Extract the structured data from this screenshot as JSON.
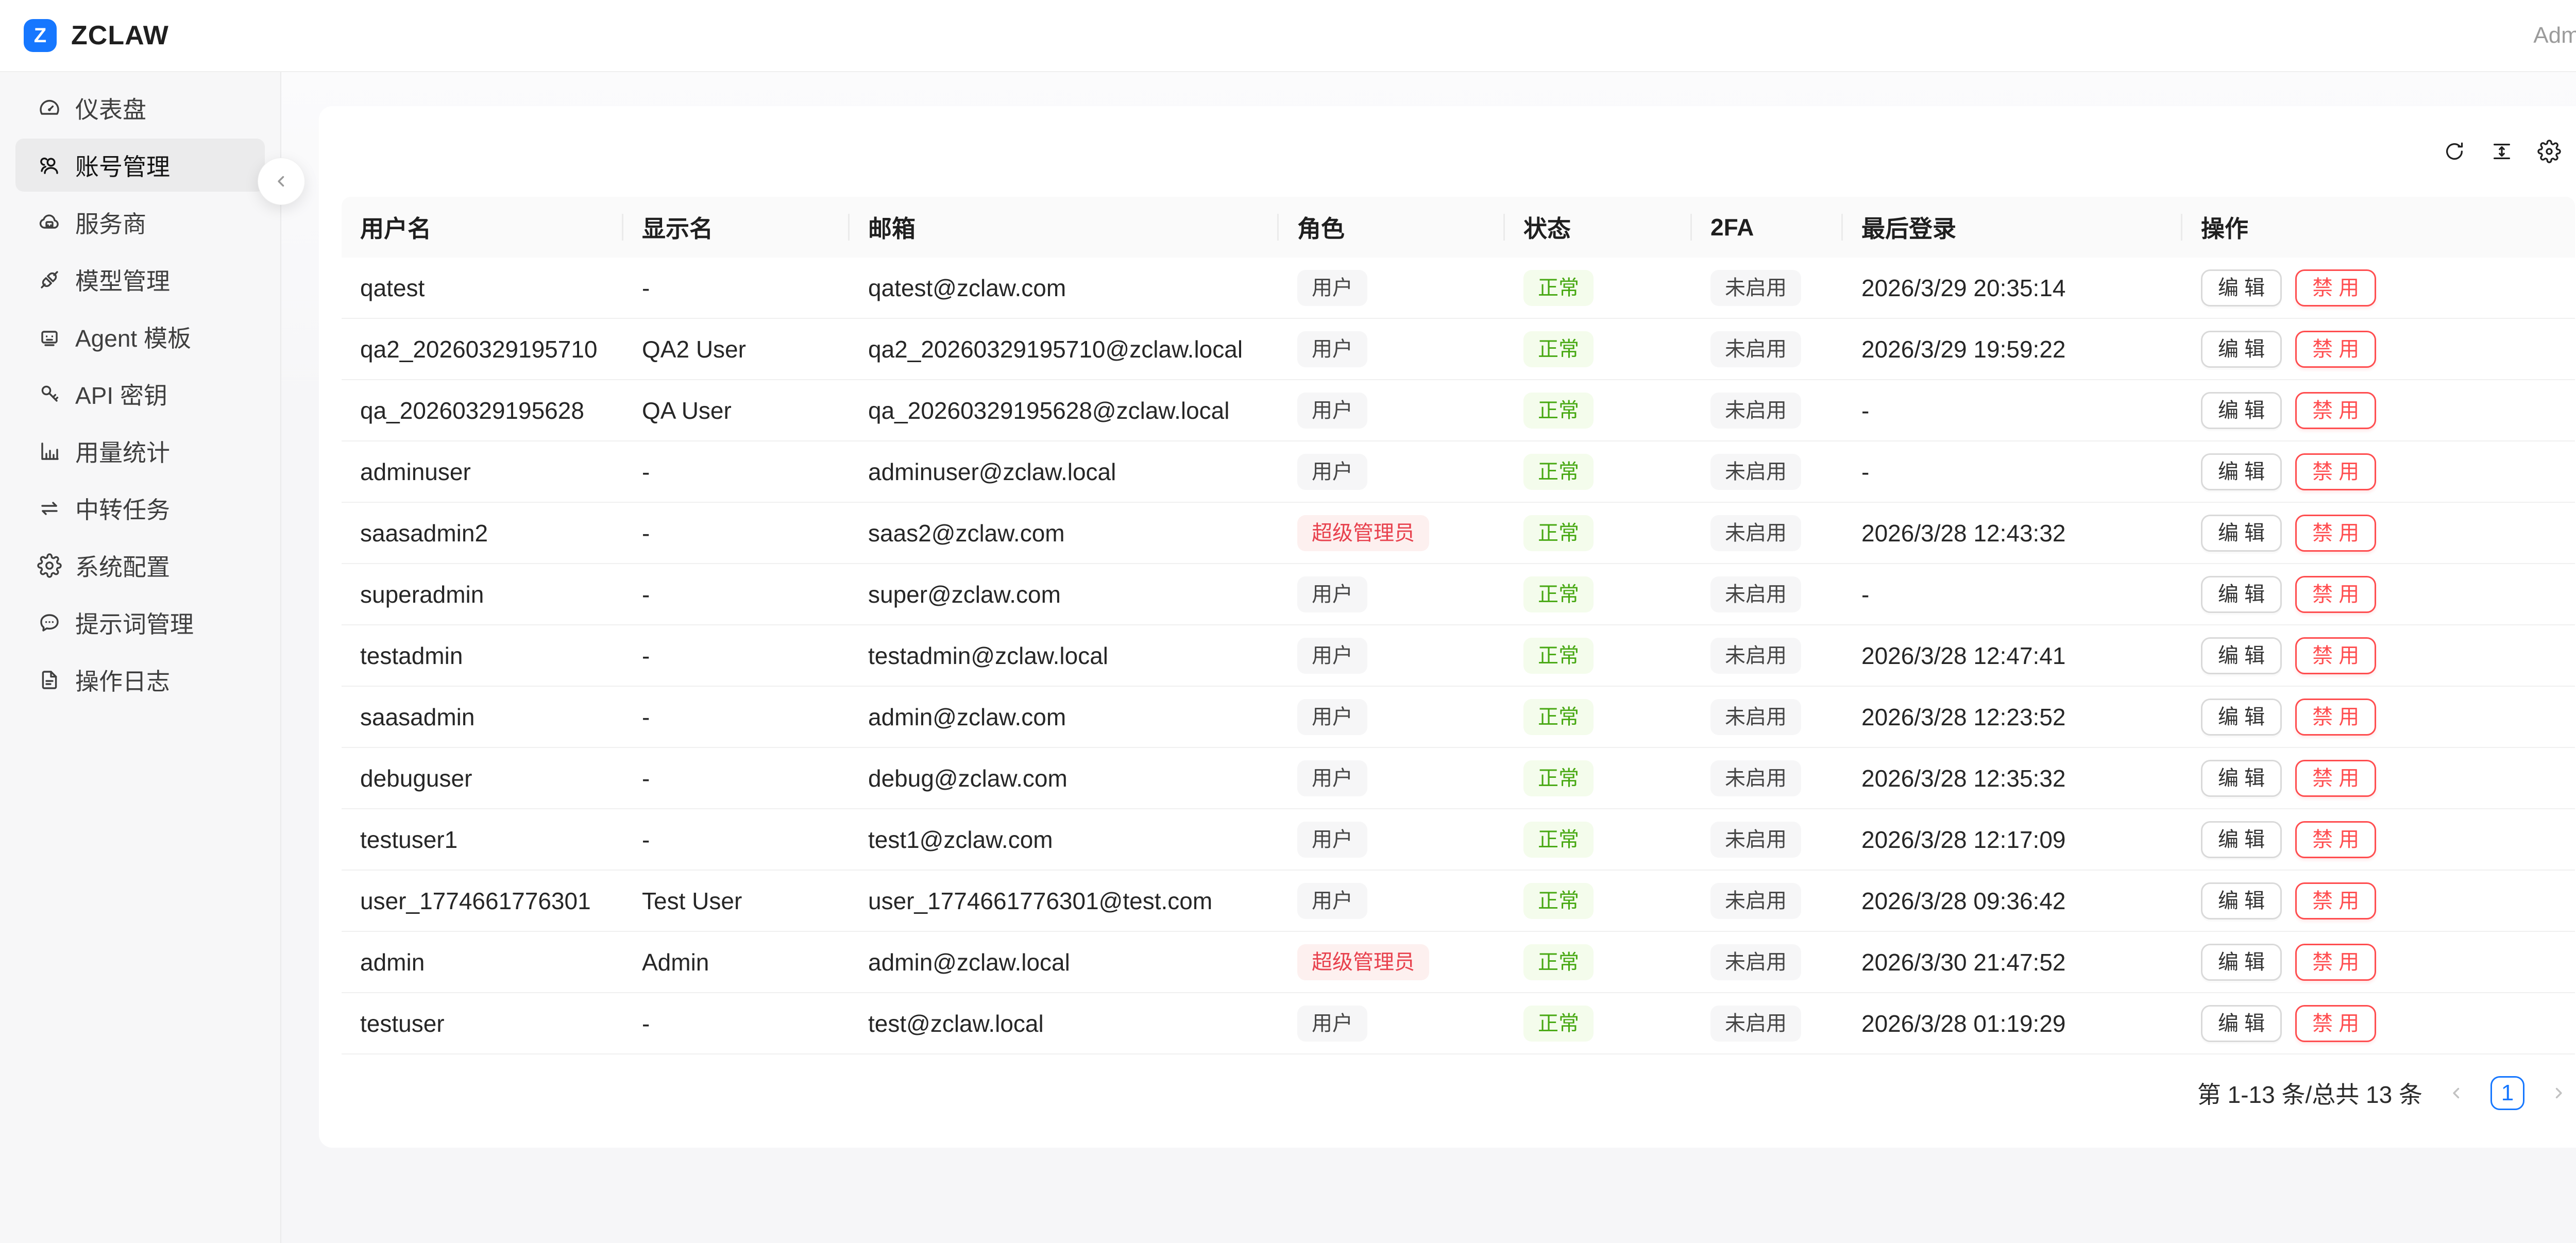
{
  "topbar": {
    "logo_letter": "Z",
    "title": "ZCLAW",
    "user": "Admin"
  },
  "colors": {
    "brand": "#1677ff",
    "tag_success_text": "#47a812",
    "tag_danger_text": "#e8414d",
    "button_danger": "#ff4d4f"
  },
  "sidebar": {
    "items": [
      {
        "label": "仪表盘",
        "icon": "dashboard-icon",
        "active": false
      },
      {
        "label": "账号管理",
        "icon": "users-icon",
        "active": true
      },
      {
        "label": "服务商",
        "icon": "cloud-server-icon",
        "active": false
      },
      {
        "label": "模型管理",
        "icon": "plug-icon",
        "active": false
      },
      {
        "label": "Agent 模板",
        "icon": "robot-icon",
        "active": false
      },
      {
        "label": "API 密钥",
        "icon": "key-icon",
        "active": false
      },
      {
        "label": "用量统计",
        "icon": "bar-chart-icon",
        "active": false
      },
      {
        "label": "中转任务",
        "icon": "swap-icon",
        "active": false
      },
      {
        "label": "系统配置",
        "icon": "gear-icon",
        "active": false
      },
      {
        "label": "提示词管理",
        "icon": "message-icon",
        "active": false
      },
      {
        "label": "操作日志",
        "icon": "file-icon",
        "active": false
      }
    ]
  },
  "toolbar": {
    "icons": [
      {
        "name": "reload-icon"
      },
      {
        "name": "density-icon"
      },
      {
        "name": "column-setting-icon"
      }
    ]
  },
  "table": {
    "columns": [
      "用户名",
      "显示名",
      "邮箱",
      "角色",
      "状态",
      "2FA",
      "最后登录",
      "操作"
    ],
    "actions": {
      "edit": "编 辑",
      "disable": "禁 用"
    },
    "rows": [
      {
        "username": "qatest",
        "display_name": "-",
        "email": "qatest@zclaw.com",
        "role": "用户",
        "role_type": "default",
        "status": "正常",
        "twofa": "未启用",
        "last_login": "2026/3/29 20:35:14"
      },
      {
        "username": "qa2_20260329195710",
        "display_name": "QA2 User",
        "email": "qa2_20260329195710@zclaw.local",
        "role": "用户",
        "role_type": "default",
        "status": "正常",
        "twofa": "未启用",
        "last_login": "2026/3/29 19:59:22"
      },
      {
        "username": "qa_20260329195628",
        "display_name": "QA User",
        "email": "qa_20260329195628@zclaw.local",
        "role": "用户",
        "role_type": "default",
        "status": "正常",
        "twofa": "未启用",
        "last_login": "-"
      },
      {
        "username": "adminuser",
        "display_name": "-",
        "email": "adminuser@zclaw.local",
        "role": "用户",
        "role_type": "default",
        "status": "正常",
        "twofa": "未启用",
        "last_login": "-"
      },
      {
        "username": "saasadmin2",
        "display_name": "-",
        "email": "saas2@zclaw.com",
        "role": "超级管理员",
        "role_type": "danger",
        "status": "正常",
        "twofa": "未启用",
        "last_login": "2026/3/28 12:43:32"
      },
      {
        "username": "superadmin",
        "display_name": "-",
        "email": "super@zclaw.com",
        "role": "用户",
        "role_type": "default",
        "status": "正常",
        "twofa": "未启用",
        "last_login": "-"
      },
      {
        "username": "testadmin",
        "display_name": "-",
        "email": "testadmin@zclaw.local",
        "role": "用户",
        "role_type": "default",
        "status": "正常",
        "twofa": "未启用",
        "last_login": "2026/3/28 12:47:41"
      },
      {
        "username": "saasadmin",
        "display_name": "-",
        "email": "admin@zclaw.com",
        "role": "用户",
        "role_type": "default",
        "status": "正常",
        "twofa": "未启用",
        "last_login": "2026/3/28 12:23:52"
      },
      {
        "username": "debuguser",
        "display_name": "-",
        "email": "debug@zclaw.com",
        "role": "用户",
        "role_type": "default",
        "status": "正常",
        "twofa": "未启用",
        "last_login": "2026/3/28 12:35:32"
      },
      {
        "username": "testuser1",
        "display_name": "-",
        "email": "test1@zclaw.com",
        "role": "用户",
        "role_type": "default",
        "status": "正常",
        "twofa": "未启用",
        "last_login": "2026/3/28 12:17:09"
      },
      {
        "username": "user_1774661776301",
        "display_name": "Test User",
        "email": "user_1774661776301@test.com",
        "role": "用户",
        "role_type": "default",
        "status": "正常",
        "twofa": "未启用",
        "last_login": "2026/3/28 09:36:42"
      },
      {
        "username": "admin",
        "display_name": "Admin",
        "email": "admin@zclaw.local",
        "role": "超级管理员",
        "role_type": "danger",
        "status": "正常",
        "twofa": "未启用",
        "last_login": "2026/3/30 21:47:52"
      },
      {
        "username": "testuser",
        "display_name": "-",
        "email": "test@zclaw.local",
        "role": "用户",
        "role_type": "default",
        "status": "正常",
        "twofa": "未启用",
        "last_login": "2026/3/28 01:19:29"
      }
    ]
  },
  "pagination": {
    "summary": "第 1-13 条/总共 13 条",
    "current_page": "1"
  }
}
